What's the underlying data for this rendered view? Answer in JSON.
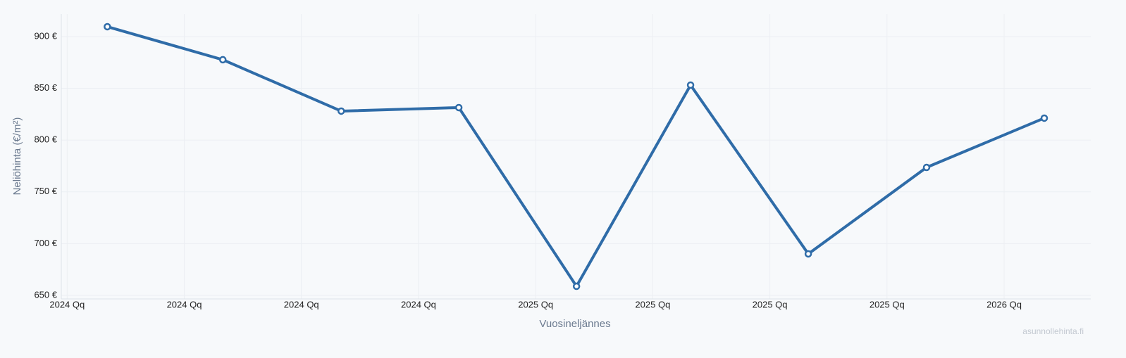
{
  "chart_data": {
    "type": "line",
    "x_label": "Vuosineljännes",
    "y_label": "Neliöhinta (€/m²)",
    "watermark": "asunnollehinta.fi",
    "x": [
      0.343,
      1.329,
      2.34,
      3.344,
      4.349,
      5.323,
      6.328,
      7.338,
      8.343
    ],
    "series": [
      {
        "name": "Neliöhinta",
        "color": "#2f6ca8",
        "values": [
          909.5,
          877.6,
          828,
          831.4,
          658.8,
          853.1,
          690.1,
          773.6,
          821.2
        ]
      }
    ],
    "xlim": [
      -0.05,
      8.74
    ],
    "xticks": [
      {
        "value": 0,
        "label": "2024 Qq"
      },
      {
        "value": 1,
        "label": "2024 Qq"
      },
      {
        "value": 2,
        "label": "2024 Qq"
      },
      {
        "value": 3,
        "label": "2024 Qq"
      },
      {
        "value": 4,
        "label": "2025 Qq"
      },
      {
        "value": 5,
        "label": "2025 Qq"
      },
      {
        "value": 6,
        "label": "2025 Qq"
      },
      {
        "value": 7,
        "label": "2025 Qq"
      },
      {
        "value": 8,
        "label": "2026 Qq"
      }
    ],
    "ylim": [
      646.6,
      921.7
    ],
    "yticks": [
      {
        "value": 650,
        "label": "650 €"
      },
      {
        "value": 700,
        "label": "700 €"
      },
      {
        "value": 750,
        "label": "750 €"
      },
      {
        "value": 800,
        "label": "800 €"
      },
      {
        "value": 850,
        "label": "850 €"
      },
      {
        "value": 900,
        "label": "900 €"
      }
    ],
    "grid": true
  }
}
